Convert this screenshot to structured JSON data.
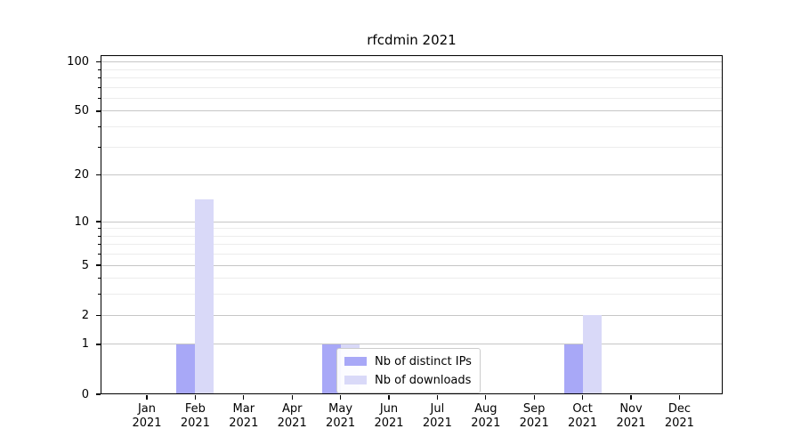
{
  "chart_data": {
    "type": "bar",
    "title": "rfcdmin 2021",
    "categories": [
      "Jan",
      "Feb",
      "Mar",
      "Apr",
      "May",
      "Jun",
      "Jul",
      "Aug",
      "Sep",
      "Oct",
      "Nov",
      "Dec"
    ],
    "category_year": "2021",
    "series": [
      {
        "name": "Nb of distinct IPs",
        "color": "#a8a8f7",
        "values": [
          0,
          1,
          0,
          0,
          1,
          0,
          0,
          0,
          0,
          1,
          0,
          0
        ]
      },
      {
        "name": "Nb of downloads",
        "color": "#d9d9f8",
        "values": [
          0,
          14,
          0,
          0,
          1,
          0,
          0,
          0,
          0,
          2,
          0,
          0
        ]
      }
    ],
    "yaxis": {
      "scale": "log1p",
      "ticks": [
        0,
        1,
        2,
        5,
        10,
        20,
        50,
        100
      ],
      "minor_ticks": [
        3,
        4,
        6,
        7,
        8,
        9,
        30,
        40,
        60,
        70,
        80,
        90
      ],
      "max": 110
    },
    "xlabel": "",
    "ylabel": "",
    "grid": "horizontal major+minor",
    "legend_position": "inside lower-center-left"
  }
}
